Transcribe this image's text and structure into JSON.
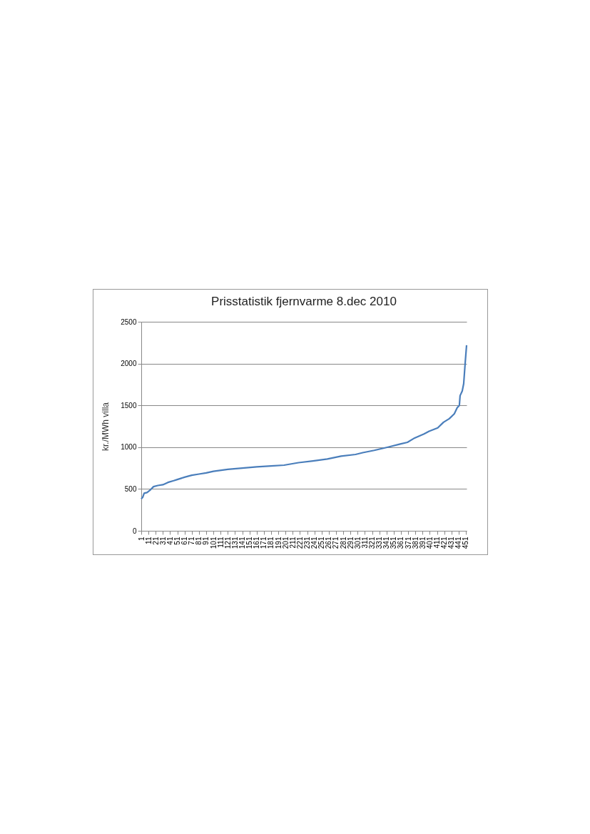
{
  "chart_data": {
    "type": "line",
    "title": "Prisstatistik fjernvarme 8.dec 2010",
    "ylabel": "kr./MWh villa",
    "x": [
      1,
      3,
      5,
      9,
      14,
      18,
      24,
      31,
      38,
      46,
      51,
      61,
      71,
      81,
      91,
      101,
      121,
      141,
      161,
      181,
      199,
      219,
      239,
      259,
      278,
      298,
      308,
      324,
      344,
      360,
      370,
      380,
      393,
      400,
      412,
      420,
      428,
      435,
      439,
      442,
      443,
      446,
      448,
      450,
      452
    ],
    "values": [
      381,
      401,
      449,
      458,
      492,
      528,
      542,
      551,
      579,
      599,
      613,
      641,
      664,
      678,
      692,
      712,
      735,
      750,
      765,
      775,
      785,
      815,
      835,
      858,
      893,
      913,
      934,
      962,
      1003,
      1038,
      1058,
      1110,
      1159,
      1191,
      1231,
      1298,
      1341,
      1399,
      1471,
      1500,
      1616,
      1673,
      1760,
      2000,
      2220
    ],
    "color": "#4a7ebb",
    "xlim": [
      1,
      452
    ],
    "xticks": [
      1,
      11,
      21,
      31,
      41,
      51,
      61,
      71,
      81,
      91,
      101,
      111,
      121,
      131,
      141,
      151,
      161,
      171,
      181,
      191,
      201,
      211,
      221,
      231,
      241,
      251,
      261,
      271,
      281,
      291,
      301,
      311,
      321,
      331,
      341,
      351,
      361,
      371,
      381,
      391,
      401,
      411,
      421,
      431,
      441,
      451
    ],
    "ylim": [
      0,
      2500
    ],
    "yticks": [
      0,
      500,
      1000,
      1500,
      2000,
      2500
    ],
    "grid": "y"
  }
}
